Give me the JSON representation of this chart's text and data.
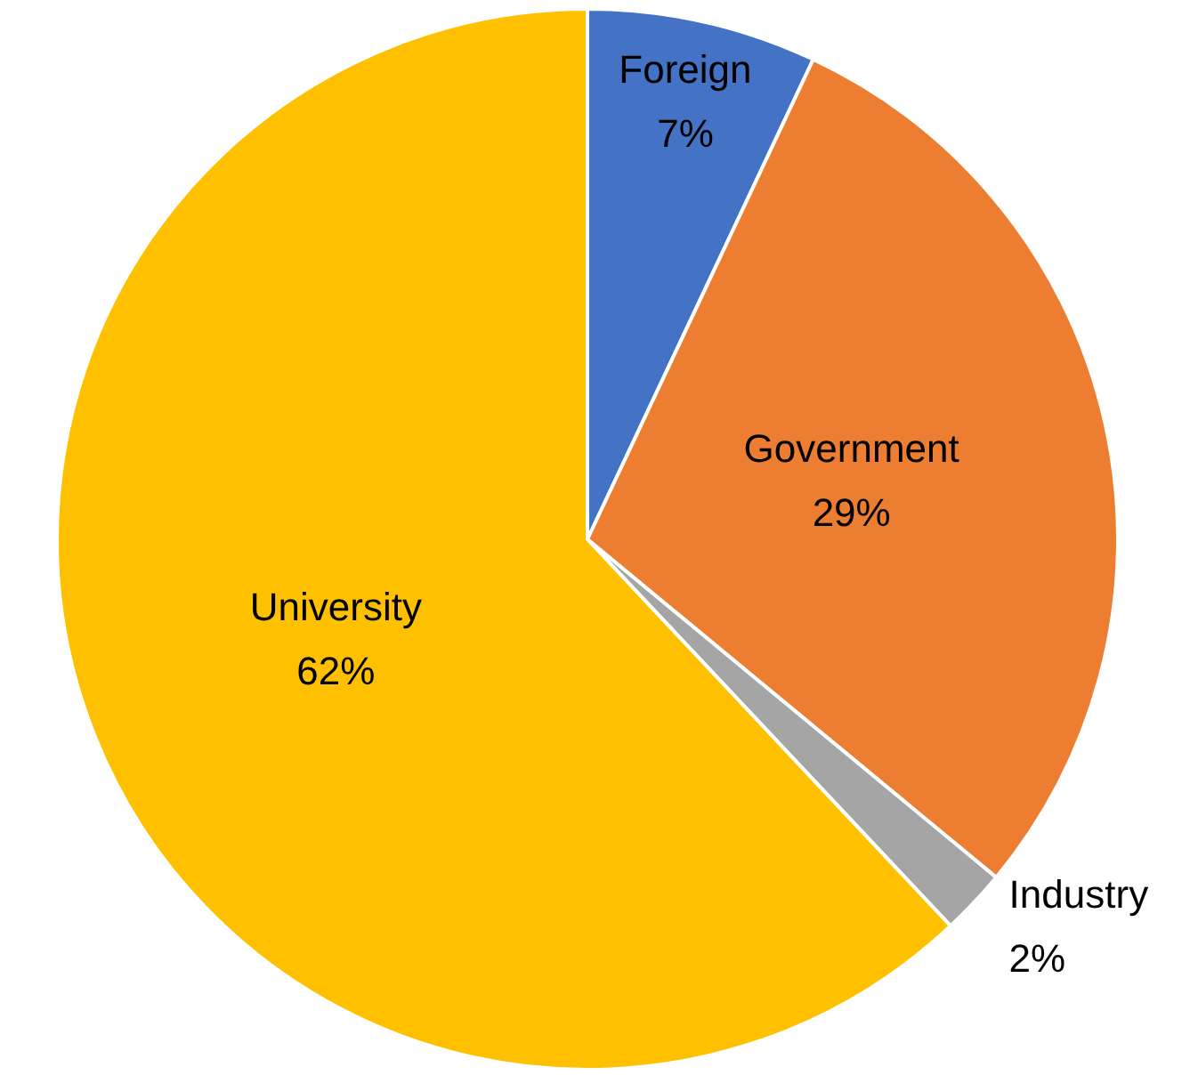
{
  "chart_data": {
    "type": "pie",
    "categories": [
      "Foreign",
      "Government",
      "Industry",
      "University"
    ],
    "values": [
      7,
      29,
      2,
      62
    ],
    "colors": [
      "#4472c4",
      "#ed7d31",
      "#a5a5a5",
      "#ffc000"
    ],
    "value_labels": [
      "7%",
      "29%",
      "2%",
      "62%"
    ],
    "legend": false
  }
}
